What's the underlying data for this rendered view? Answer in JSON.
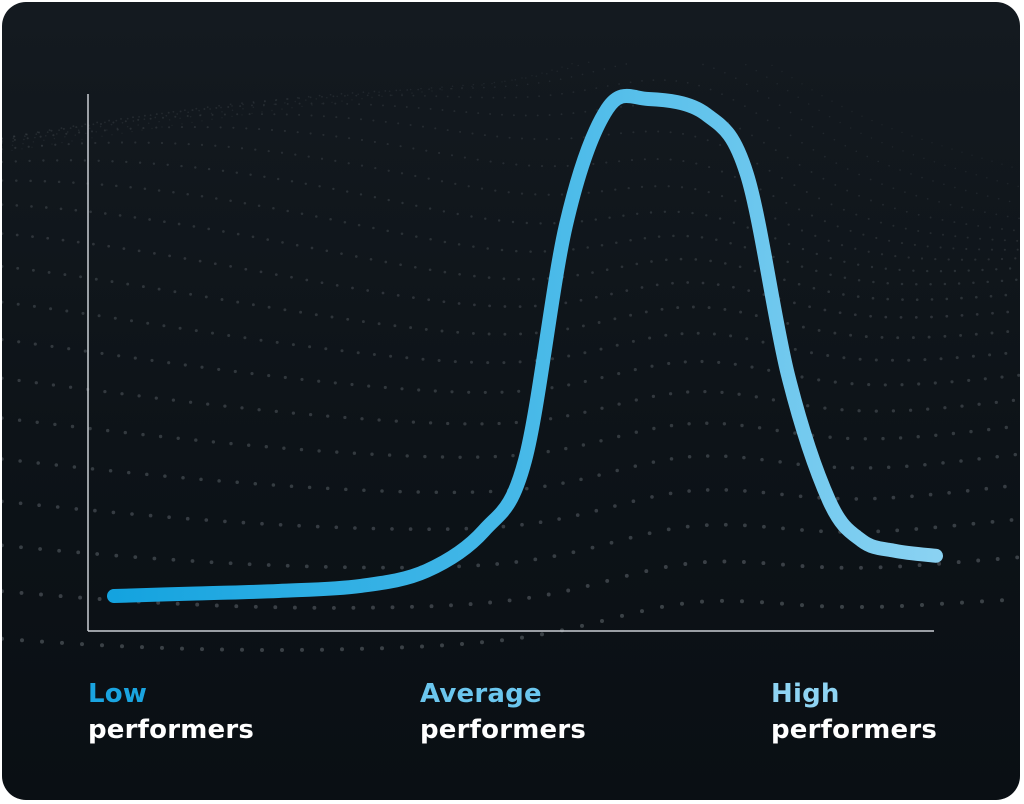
{
  "colors": {
    "background": "#0d1318",
    "curve_start": "#14a3df",
    "curve_end": "#8ad2f2",
    "axis": "#c9ced3",
    "label_primary": "#ffffff",
    "dots": "#8a9197"
  },
  "chart_data": {
    "type": "line",
    "title": "",
    "xlabel": "",
    "ylabel": "",
    "grid": false,
    "legend": "none",
    "x": [
      0,
      0.1,
      0.2,
      0.3,
      0.38,
      0.45,
      0.5,
      0.55,
      0.6,
      0.65,
      0.72,
      0.77,
      0.82,
      0.87,
      0.91,
      0.95,
      1.0
    ],
    "y": [
      0.01,
      0.015,
      0.02,
      0.03,
      0.06,
      0.14,
      0.28,
      0.75,
      0.98,
      1.0,
      0.97,
      0.85,
      0.45,
      0.2,
      0.12,
      0.1,
      0.09
    ],
    "xlim": [
      0,
      1
    ],
    "ylim": [
      0,
      1.05
    ],
    "categories": [
      {
        "accent": "Low",
        "label": "performers"
      },
      {
        "accent": "Average",
        "label": "performers"
      },
      {
        "accent": "High",
        "label": "performers"
      }
    ]
  }
}
